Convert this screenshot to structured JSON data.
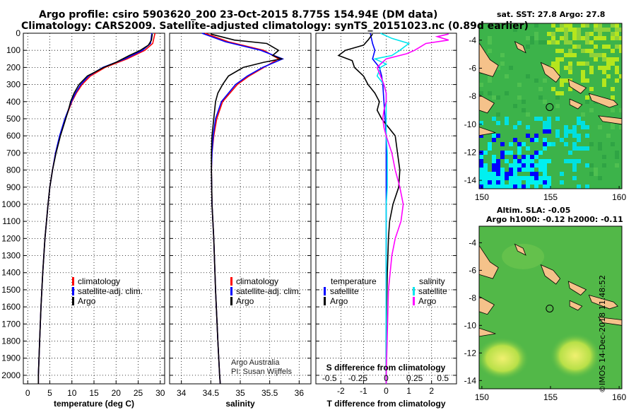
{
  "title": {
    "line1": "Argo profile: csiro 5903620_200 23-Oct-2015 8.775S 154.94E (DM data)",
    "line2": "Climatology: CARS2009. Satellite-adjusted climatology: synTS_20151023.nc (0.89d earlier)"
  },
  "colors": {
    "climatology": "#ff0000",
    "satellite": "#0000ff",
    "argo": "#000000",
    "satellite_s": "#00e5ee",
    "argo_s": "#ff00ff"
  },
  "chart_data": [
    {
      "type": "line",
      "name": "temperature",
      "xlabel": "temperature (deg C)",
      "ylabel": "",
      "xlim": [
        -1,
        31
      ],
      "ylim": [
        2050,
        0
      ],
      "y_inverted": true,
      "xticks": [
        "0",
        "5",
        "10",
        "15",
        "20",
        "25",
        "30"
      ],
      "yticks": [
        "0",
        "100",
        "200",
        "300",
        "400",
        "500",
        "600",
        "700",
        "800",
        "900",
        "1000",
        "1100",
        "1200",
        "1300",
        "1400",
        "1500",
        "1600",
        "1700",
        "1800",
        "1900",
        "2000"
      ],
      "legend": [
        "climatology",
        "satellite-adj. clim.",
        "Argo"
      ],
      "legend_position": "lower-right",
      "series": [
        {
          "name": "climatology",
          "depth": [
            0,
            60,
            100,
            150,
            200,
            250,
            300,
            350,
            400,
            500,
            600,
            700,
            800,
            900,
            1000,
            1200,
            1400,
            1600,
            1800,
            2000,
            2050
          ],
          "values": [
            28.8,
            28.3,
            26.5,
            22.5,
            17.5,
            14.2,
            12.3,
            11.0,
            10.0,
            8.5,
            7.3,
            6.3,
            5.6,
            5.0,
            4.6,
            3.9,
            3.4,
            3.0,
            2.7,
            2.4,
            2.4
          ]
        },
        {
          "name": "satellite-adj. clim.",
          "depth": [
            0,
            60,
            100,
            150,
            200,
            250,
            300,
            350,
            400,
            500,
            600,
            700,
            800,
            900,
            1000,
            1200,
            1400,
            1600,
            1800,
            2000,
            2050
          ],
          "values": [
            28.1,
            27.8,
            26.0,
            22.0,
            17.0,
            13.8,
            12.0,
            10.8,
            9.9,
            8.4,
            7.2,
            6.3,
            5.6,
            5.0,
            4.6,
            3.9,
            3.4,
            3.0,
            2.7,
            2.4,
            2.4
          ]
        },
        {
          "name": "Argo",
          "depth": [
            5,
            40,
            70,
            100,
            130,
            170,
            200,
            250,
            300,
            350,
            400,
            450,
            500,
            600,
            700,
            800,
            900,
            1000,
            1200,
            1400,
            1600,
            1800,
            2000,
            2050
          ],
          "values": [
            28.2,
            28.0,
            27.3,
            25.5,
            23.0,
            20.0,
            17.2,
            13.5,
            11.6,
            10.5,
            9.7,
            9.2,
            8.6,
            7.4,
            6.4,
            5.6,
            5.0,
            4.6,
            3.9,
            3.4,
            3.0,
            2.7,
            2.4,
            2.4
          ]
        }
      ]
    },
    {
      "type": "line",
      "name": "salinity",
      "xlabel": "salinity",
      "ylabel": "",
      "xlim": [
        33.8,
        36.2
      ],
      "ylim": [
        2050,
        0
      ],
      "y_inverted": true,
      "xticks": [
        "34",
        "34.5",
        "35",
        "35.5",
        "36"
      ],
      "legend": [
        "climatology",
        "satellite-adj. clim.",
        "Argo"
      ],
      "legend_position": "lower-right",
      "annotation": [
        "Argo Australia",
        "PI: Susan Wijffels"
      ],
      "series": [
        {
          "name": "climatology",
          "depth": [
            0,
            50,
            100,
            150,
            200,
            250,
            300,
            400,
            500,
            600,
            700,
            800,
            1000,
            1200,
            1500,
            1800,
            2000,
            2050
          ],
          "values": [
            34.4,
            34.8,
            35.4,
            35.65,
            35.4,
            35.15,
            34.95,
            34.7,
            34.6,
            34.55,
            34.52,
            34.51,
            34.52,
            34.55,
            34.58,
            34.62,
            34.65,
            34.66
          ]
        },
        {
          "name": "satellite-adj. clim.",
          "depth": [
            0,
            50,
            100,
            150,
            200,
            250,
            300,
            400,
            500,
            600,
            700,
            800,
            1000,
            1200,
            1500,
            1800,
            2000,
            2050
          ],
          "values": [
            34.35,
            34.75,
            35.35,
            35.72,
            35.38,
            35.12,
            34.92,
            34.68,
            34.58,
            34.54,
            34.52,
            34.51,
            34.52,
            34.55,
            34.58,
            34.62,
            34.65,
            34.66
          ]
        },
        {
          "name": "Argo",
          "depth": [
            5,
            40,
            60,
            100,
            130,
            150,
            170,
            200,
            250,
            300,
            350,
            400,
            500,
            600,
            700,
            800,
            1000,
            1200,
            1500,
            1800,
            2000,
            2050
          ],
          "values": [
            34.5,
            34.9,
            35.45,
            35.65,
            35.55,
            35.7,
            35.4,
            35.05,
            34.8,
            34.7,
            34.62,
            34.58,
            34.55,
            34.52,
            34.51,
            34.51,
            34.52,
            34.55,
            34.58,
            34.62,
            34.65,
            34.66
          ]
        }
      ]
    },
    {
      "type": "line",
      "name": "differences",
      "xlabel": "T difference from climatology",
      "xlabel_secondary": "S difference from climatology",
      "xlim": [
        -3.1,
        3.1
      ],
      "ylim": [
        2050,
        0
      ],
      "y_inverted": true,
      "xticks": [
        "-2",
        "-1",
        "0",
        "1",
        "2"
      ],
      "xticks_secondary": [
        "-0.5",
        "-0.25",
        "0",
        "0.25",
        "0.5"
      ],
      "legend_left": [
        "temperature",
        "satellite",
        "Argo"
      ],
      "legend_right": [
        "salinity",
        "satellite",
        "Argo"
      ],
      "legend_position": "lower",
      "series": [
        {
          "name": "T satellite",
          "depth": [
            0,
            60,
            100,
            150,
            200,
            250,
            300,
            400,
            500,
            600,
            700,
            800,
            900,
            1000,
            1200,
            1400,
            1600,
            1800,
            2000,
            2050
          ],
          "values": [
            -0.7,
            -0.6,
            -0.5,
            -0.6,
            -0.3,
            -0.2,
            -0.15,
            -0.1,
            -0.05,
            0,
            0,
            0,
            0,
            0,
            0,
            0,
            0,
            0,
            0,
            0
          ]
        },
        {
          "name": "T Argo",
          "depth": [
            5,
            40,
            70,
            100,
            130,
            160,
            200,
            250,
            300,
            350,
            400,
            450,
            500,
            600,
            700,
            800,
            900,
            1000,
            1100,
            1200,
            1400,
            1600,
            1800,
            2000,
            2050
          ],
          "values": [
            -0.6,
            -0.8,
            -1.0,
            -1.8,
            -2.1,
            -1.5,
            -1.4,
            -1.0,
            -0.8,
            -0.5,
            -0.3,
            -0.4,
            -0.2,
            0.4,
            0.5,
            0.6,
            0.55,
            0.3,
            0.15,
            0.1,
            0.05,
            0.02,
            0.0,
            0.0,
            0.0
          ]
        },
        {
          "name": "S satellite",
          "depth": [
            0,
            30,
            60,
            100,
            130,
            150,
            180,
            200,
            250,
            300,
            350,
            400,
            500,
            600,
            700,
            800,
            900,
            1000,
            1200,
            1500,
            2000,
            2050
          ],
          "values": [
            -0.05,
            0.05,
            0.2,
            0.12,
            0.05,
            -0.1,
            0.0,
            -0.05,
            -0.08,
            -0.02,
            0.0,
            0.0,
            0.0,
            0.0,
            0.01,
            0.01,
            0.01,
            0.0,
            0.0,
            0.0,
            0.0,
            0.0
          ]
        },
        {
          "name": "S Argo",
          "depth": [
            5,
            20,
            40,
            60,
            80,
            100,
            120,
            150,
            180,
            200,
            250,
            300,
            350,
            400,
            450,
            500,
            550,
            600,
            700,
            800,
            900,
            1000,
            1100,
            1200,
            1300,
            1500,
            2000,
            2050
          ],
          "values": [
            0.55,
            0.45,
            0.55,
            0.35,
            0.3,
            0.25,
            0.18,
            0.0,
            -0.05,
            -0.08,
            -0.05,
            -0.02,
            0.0,
            0.0,
            -0.02,
            -0.03,
            -0.02,
            0.0,
            0.05,
            0.08,
            0.12,
            0.15,
            0.13,
            0.08,
            0.05,
            0.02,
            0.0,
            0.0
          ]
        }
      ]
    },
    {
      "type": "heatmap",
      "name": "sat-sst-map",
      "title": "sat. SST: 27.8 Argo: 27.8",
      "xlim": [
        149.8,
        160.2
      ],
      "ylim": [
        -14.6,
        -2.8
      ],
      "xticks": [
        "150",
        "155",
        "160"
      ],
      "yticks": [
        "-4",
        "-6",
        "-8",
        "-10",
        "-12",
        "-14"
      ],
      "marker": {
        "lon": 154.94,
        "lat": -8.775
      }
    },
    {
      "type": "heatmap",
      "name": "sla-map",
      "title": "Altim. SLA: -0.05",
      "subtitle": "Argo h1000: -0.12 h2000: -0.11",
      "xlim": [
        149.8,
        160.2
      ],
      "ylim": [
        -14.6,
        -2.8
      ],
      "xticks": [
        "150",
        "155",
        "160"
      ],
      "yticks": [
        "-4",
        "-6",
        "-8",
        "-10",
        "-12",
        "-14"
      ],
      "marker": {
        "lon": 154.94,
        "lat": -8.775
      }
    }
  ],
  "stamp": "©IMOS 14-Dec-2018 11:48:52"
}
